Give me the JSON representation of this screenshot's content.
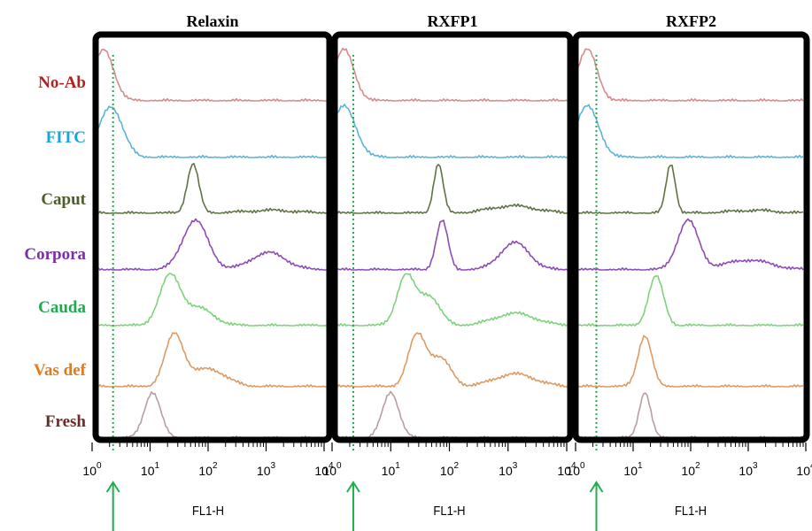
{
  "chart_data": {
    "type": "histogram-overlay-panels",
    "xlabel": "FL1-H",
    "x_scale": "log",
    "xlim": [
      1,
      10000
    ],
    "x_ticks": [
      {
        "base": "10",
        "exp": "0"
      },
      {
        "base": "10",
        "exp": "1"
      },
      {
        "base": "10",
        "exp": "2"
      },
      {
        "base": "10",
        "exp": "3"
      },
      {
        "base": "10",
        "exp": "4"
      }
    ],
    "marker_x": 2.3,
    "rows": [
      {
        "name": "No-Ab",
        "color": "#b22222",
        "line": "#d88a8a"
      },
      {
        "name": "FITC",
        "color": "#1aa3de",
        "line": "#5ab4d8"
      },
      {
        "name": "Caput",
        "color": "#4e5d2e",
        "line": "#5f7345"
      },
      {
        "name": "Corpora",
        "color": "#7a2fa5",
        "line": "#8e4bb7"
      },
      {
        "name": "Cauda",
        "color": "#22a84f",
        "line": "#7ed37c"
      },
      {
        "name": "Vas def",
        "color": "#e07b1f",
        "line": "#de9a64"
      },
      {
        "name": "Fresh",
        "color": "#6b2b2b",
        "line": "#b89ea0"
      }
    ],
    "panels": [
      {
        "title": "Relaxin",
        "peaks": [
          [
            {
              "x": 1.6,
              "h": 1.0,
              "w": 0.17
            }
          ],
          [
            {
              "x": 2.1,
              "h": 1.0,
              "w": 0.2
            }
          ],
          [
            {
              "x": 55,
              "h": 1.0,
              "w": 0.1
            },
            {
              "x": 1200,
              "h": 0.06,
              "w": 0.45
            }
          ],
          [
            {
              "x": 60,
              "h": 1.0,
              "w": 0.22
            },
            {
              "x": 1100,
              "h": 0.35,
              "w": 0.3
            }
          ],
          [
            {
              "x": 22,
              "h": 1.0,
              "w": 0.18
            },
            {
              "x": 70,
              "h": 0.35,
              "w": 0.25
            }
          ],
          [
            {
              "x": 26,
              "h": 1.0,
              "w": 0.16
            },
            {
              "x": 100,
              "h": 0.35,
              "w": 0.3
            }
          ],
          [
            {
              "x": 11,
              "h": 1.0,
              "w": 0.14
            }
          ]
        ]
      },
      {
        "title": "RXFP1",
        "peaks": [
          [
            {
              "x": 1.6,
              "h": 1.0,
              "w": 0.17
            }
          ],
          [
            {
              "x": 1.6,
              "h": 1.0,
              "w": 0.2
            }
          ],
          [
            {
              "x": 65,
              "h": 1.0,
              "w": 0.08
            },
            {
              "x": 1200,
              "h": 0.15,
              "w": 0.4
            }
          ],
          [
            {
              "x": 75,
              "h": 1.0,
              "w": 0.1
            },
            {
              "x": 1300,
              "h": 0.55,
              "w": 0.25
            }
          ],
          [
            {
              "x": 18,
              "h": 1.0,
              "w": 0.15
            },
            {
              "x": 45,
              "h": 0.6,
              "w": 0.18
            },
            {
              "x": 1300,
              "h": 0.25,
              "w": 0.35
            }
          ],
          [
            {
              "x": 28,
              "h": 1.0,
              "w": 0.15
            },
            {
              "x": 70,
              "h": 0.55,
              "w": 0.18
            },
            {
              "x": 1300,
              "h": 0.25,
              "w": 0.35
            }
          ],
          [
            {
              "x": 10,
              "h": 1.0,
              "w": 0.14
            }
          ]
        ]
      },
      {
        "title": "RXFP2",
        "peaks": [
          [
            {
              "x": 1.6,
              "h": 1.0,
              "w": 0.17
            }
          ],
          [
            {
              "x": 1.6,
              "h": 1.0,
              "w": 0.2
            }
          ],
          [
            {
              "x": 45,
              "h": 1.0,
              "w": 0.08
            },
            {
              "x": 1200,
              "h": 0.06,
              "w": 0.4
            }
          ],
          [
            {
              "x": 90,
              "h": 1.0,
              "w": 0.18
            },
            {
              "x": 1000,
              "h": 0.2,
              "w": 0.4
            }
          ],
          [
            {
              "x": 25,
              "h": 1.0,
              "w": 0.13
            }
          ],
          [
            {
              "x": 16,
              "h": 1.0,
              "w": 0.12
            }
          ],
          [
            {
              "x": 16,
              "h": 1.0,
              "w": 0.1
            }
          ]
        ]
      }
    ]
  }
}
